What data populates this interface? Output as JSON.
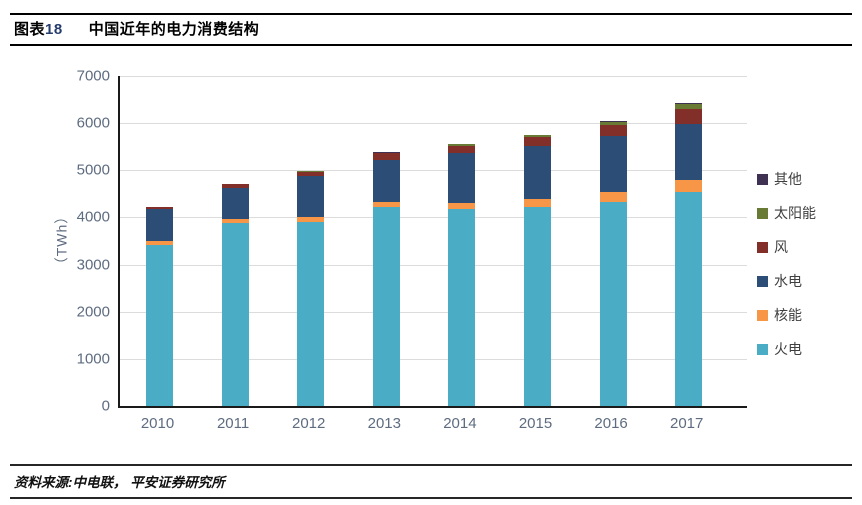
{
  "header": {
    "tag_prefix": "图表",
    "tag_number": "18",
    "title": "中国近年的电力消费结构"
  },
  "footer": {
    "source": "资料来源:中电联， 平安证券研究所"
  },
  "chart_data": {
    "type": "bar",
    "stacked": true,
    "title": "中国近年的电力消费结构",
    "ylabel": "（TWh）",
    "xlabel": "",
    "ylim": [
      0,
      7000
    ],
    "yticks": [
      0,
      1000,
      2000,
      3000,
      4000,
      5000,
      6000,
      7000
    ],
    "grid": true,
    "legend_position": "right",
    "categories": [
      "2010",
      "2011",
      "2012",
      "2013",
      "2014",
      "2015",
      "2016",
      "2017"
    ],
    "series": [
      {
        "name": "火电",
        "color": "#4BACC6",
        "values": [
          3420,
          3880,
          3910,
          4220,
          4170,
          4230,
          4330,
          4550
        ]
      },
      {
        "name": "核能",
        "color": "#F79646",
        "values": [
          74,
          87,
          98,
          112,
          133,
          171,
          213,
          248
        ]
      },
      {
        "name": "水电",
        "color": "#2C4D75",
        "values": [
          687,
          668,
          864,
          892,
          1064,
          1113,
          1175,
          1190
        ]
      },
      {
        "name": "风",
        "color": "#822E29",
        "values": [
          45,
          70,
          103,
          138,
          156,
          186,
          241,
          305
        ]
      },
      {
        "name": "太阳能",
        "color": "#697A34",
        "values": [
          1,
          3,
          6,
          16,
          29,
          45,
          75,
          118
        ]
      },
      {
        "name": "其他",
        "color": "#3F3151",
        "values": [
          3,
          4,
          5,
          6,
          8,
          10,
          12,
          15
        ]
      }
    ],
    "legend_order_top_to_bottom": [
      "其他",
      "太阳能",
      "风",
      "水电",
      "核能",
      "火电"
    ],
    "totals": [
      4230,
      4712,
      4986,
      5384,
      5560,
      5755,
      6046,
      6426
    ]
  },
  "colors": {
    "axis_text": "#5E6C80",
    "legend_text": "#404040",
    "gridline": "#DCDCDC",
    "axis_line": "#1A1A1A",
    "tag_number": "#253C6E"
  }
}
